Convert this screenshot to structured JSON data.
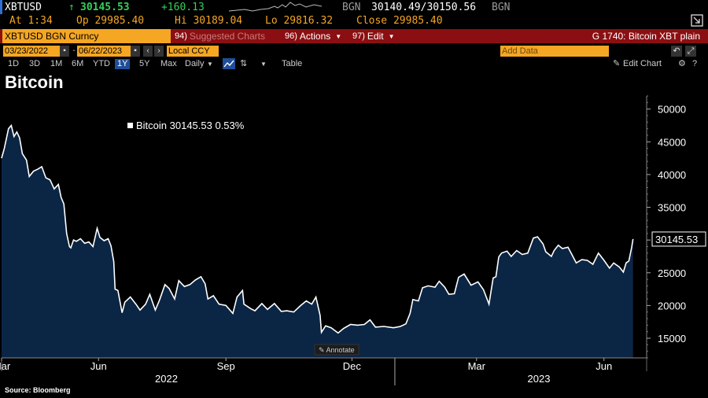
{
  "ticker": {
    "symbol": "XBTUSD",
    "price": "30145.53",
    "change": "+160.13",
    "source_label": "BGN",
    "bid_ask": "30140.49/30150.56",
    "source_label2": "BGN",
    "up_arrow": "↑"
  },
  "quote": {
    "at": "At 1:34",
    "open": "Op 29985.40",
    "high": "Hi 30189.04",
    "low": "Lo 29816.32",
    "close": "Close 29985.40"
  },
  "cmdbar": {
    "security": "XBTUSD BGN Curncy",
    "suggested_num": "94)",
    "suggested": "Suggested Charts",
    "actions_num": "96)",
    "actions": "Actions",
    "edit_num": "97)",
    "edit": "Edit",
    "right_title": "G 1740: Bitcoin XBT plain"
  },
  "dates": {
    "start": "03/23/2022",
    "end": "06/22/2023",
    "currency": "Local CCY",
    "add_data_placeholder": "Add Data",
    "edit_chart": "Edit Chart"
  },
  "ranges": [
    "1D",
    "3D",
    "1M",
    "6M",
    "YTD",
    "1Y",
    "5Y",
    "Max"
  ],
  "selected_range": "1Y",
  "period": "Daily",
  "table_label": "Table",
  "title": "Bitcoin",
  "source": "Source:  Bloomberg",
  "annotate": "Annotate",
  "colors": {
    "accent": "#f5a623",
    "cmdbar": "#8b0f12",
    "fill": "#0b2545",
    "line": "#ffffff",
    "up": "#34d058"
  },
  "chart_data": {
    "type": "area",
    "series_name": "Bitcoin",
    "legend_label": "Bitcoin 30145.53  0.53%",
    "last_value_label": "30145.53",
    "ylim": [
      12000,
      52000
    ],
    "yticks": [
      15000,
      20000,
      25000,
      30000,
      35000,
      40000,
      45000,
      50000
    ],
    "ytick_labels": [
      "15000",
      "20000",
      "25000",
      "30000",
      "35000",
      "40000",
      "45000",
      "50000"
    ],
    "xlim": [
      "2022-03-23",
      "2023-06-22"
    ],
    "x_month_labels": [
      {
        "label": "Mar",
        "date": "2022-03-23"
      },
      {
        "label": "Jun",
        "date": "2022-06-01"
      },
      {
        "label": "Sep",
        "date": "2022-09-01"
      },
      {
        "label": "Dec",
        "date": "2022-12-01"
      },
      {
        "label": "Mar",
        "date": "2023-03-01"
      },
      {
        "label": "Jun",
        "date": "2023-06-01"
      }
    ],
    "x_year_labels": [
      {
        "label": "2022",
        "date": "2022-07-20"
      },
      {
        "label": "2023",
        "date": "2023-04-15"
      }
    ],
    "x_year_divider": "2023-01-01",
    "points": [
      [
        "2022-03-23",
        42500
      ],
      [
        "2022-03-25",
        44000
      ],
      [
        "2022-03-28",
        47000
      ],
      [
        "2022-03-30",
        47500
      ],
      [
        "2022-04-01",
        45800
      ],
      [
        "2022-04-03",
        46500
      ],
      [
        "2022-04-05",
        45600
      ],
      [
        "2022-04-07",
        43200
      ],
      [
        "2022-04-10",
        42200
      ],
      [
        "2022-04-12",
        39700
      ],
      [
        "2022-04-15",
        40500
      ],
      [
        "2022-04-18",
        40800
      ],
      [
        "2022-04-21",
        41200
      ],
      [
        "2022-04-24",
        39500
      ],
      [
        "2022-04-27",
        39200
      ],
      [
        "2022-04-30",
        37800
      ],
      [
        "2022-05-03",
        38500
      ],
      [
        "2022-05-05",
        36500
      ],
      [
        "2022-05-07",
        35500
      ],
      [
        "2022-05-09",
        31000
      ],
      [
        "2022-05-11",
        29000
      ],
      [
        "2022-05-12",
        28800
      ],
      [
        "2022-05-14",
        30000
      ],
      [
        "2022-05-16",
        29800
      ],
      [
        "2022-05-19",
        30200
      ],
      [
        "2022-05-22",
        29500
      ],
      [
        "2022-05-25",
        29700
      ],
      [
        "2022-05-28",
        29000
      ],
      [
        "2022-05-31",
        31800
      ],
      [
        "2022-06-02",
        30400
      ],
      [
        "2022-06-05",
        29900
      ],
      [
        "2022-06-08",
        30200
      ],
      [
        "2022-06-10",
        29100
      ],
      [
        "2022-06-12",
        26700
      ],
      [
        "2022-06-13",
        22500
      ],
      [
        "2022-06-15",
        22300
      ],
      [
        "2022-06-18",
        18900
      ],
      [
        "2022-06-20",
        20500
      ],
      [
        "2022-06-24",
        21300
      ],
      [
        "2022-06-28",
        20200
      ],
      [
        "2022-07-01",
        19300
      ],
      [
        "2022-07-05",
        20200
      ],
      [
        "2022-07-08",
        21700
      ],
      [
        "2022-07-12",
        19300
      ],
      [
        "2022-07-15",
        20800
      ],
      [
        "2022-07-19",
        23200
      ],
      [
        "2022-07-22",
        22600
      ],
      [
        "2022-07-26",
        21000
      ],
      [
        "2022-07-29",
        23800
      ],
      [
        "2022-08-02",
        22900
      ],
      [
        "2022-08-06",
        23200
      ],
      [
        "2022-08-10",
        23900
      ],
      [
        "2022-08-14",
        24400
      ],
      [
        "2022-08-17",
        23300
      ],
      [
        "2022-08-19",
        21000
      ],
      [
        "2022-08-23",
        21500
      ],
      [
        "2022-08-27",
        20200
      ],
      [
        "2022-09-01",
        20000
      ],
      [
        "2022-09-06",
        18800
      ],
      [
        "2022-09-09",
        21300
      ],
      [
        "2022-09-13",
        22300
      ],
      [
        "2022-09-14",
        20200
      ],
      [
        "2022-09-19",
        19500
      ],
      [
        "2022-09-22",
        19200
      ],
      [
        "2022-09-27",
        20300
      ],
      [
        "2022-10-01",
        19400
      ],
      [
        "2022-10-06",
        20300
      ],
      [
        "2022-10-11",
        19100
      ],
      [
        "2022-10-15",
        19200
      ],
      [
        "2022-10-20",
        19000
      ],
      [
        "2022-10-25",
        20000
      ],
      [
        "2022-10-29",
        20700
      ],
      [
        "2022-11-02",
        20200
      ],
      [
        "2022-11-05",
        21300
      ],
      [
        "2022-11-08",
        18500
      ],
      [
        "2022-11-09",
        15900
      ],
      [
        "2022-11-12",
        16900
      ],
      [
        "2022-11-16",
        16600
      ],
      [
        "2022-11-21",
        15800
      ],
      [
        "2022-11-25",
        16500
      ],
      [
        "2022-11-30",
        17100
      ],
      [
        "2022-12-05",
        17000
      ],
      [
        "2022-12-10",
        17100
      ],
      [
        "2022-12-14",
        17800
      ],
      [
        "2022-12-18",
        16700
      ],
      [
        "2022-12-24",
        16800
      ],
      [
        "2022-12-31",
        16600
      ],
      [
        "2023-01-05",
        16800
      ],
      [
        "2023-01-09",
        17200
      ],
      [
        "2023-01-12",
        18800
      ],
      [
        "2023-01-14",
        20900
      ],
      [
        "2023-01-18",
        20700
      ],
      [
        "2023-01-21",
        22700
      ],
      [
        "2023-01-25",
        23000
      ],
      [
        "2023-01-30",
        22800
      ],
      [
        "2023-02-02",
        23700
      ],
      [
        "2023-02-06",
        22800
      ],
      [
        "2023-02-09",
        21700
      ],
      [
        "2023-02-13",
        21800
      ],
      [
        "2023-02-16",
        24300
      ],
      [
        "2023-02-20",
        24800
      ],
      [
        "2023-02-25",
        23100
      ],
      [
        "2023-03-02",
        23600
      ],
      [
        "2023-03-06",
        22400
      ],
      [
        "2023-03-10",
        20200
      ],
      [
        "2023-03-13",
        24200
      ],
      [
        "2023-03-15",
        24400
      ],
      [
        "2023-03-17",
        27400
      ],
      [
        "2023-03-19",
        28000
      ],
      [
        "2023-03-23",
        28300
      ],
      [
        "2023-03-26",
        27500
      ],
      [
        "2023-03-30",
        28400
      ],
      [
        "2023-04-03",
        27800
      ],
      [
        "2023-04-07",
        28000
      ],
      [
        "2023-04-11",
        30300
      ],
      [
        "2023-04-14",
        30500
      ],
      [
        "2023-04-18",
        29400
      ],
      [
        "2023-04-20",
        28200
      ],
      [
        "2023-04-24",
        27500
      ],
      [
        "2023-04-26",
        28400
      ],
      [
        "2023-04-29",
        29200
      ],
      [
        "2023-05-02",
        28700
      ],
      [
        "2023-05-06",
        28900
      ],
      [
        "2023-05-09",
        27700
      ],
      [
        "2023-05-12",
        26500
      ],
      [
        "2023-05-16",
        27000
      ],
      [
        "2023-05-20",
        26900
      ],
      [
        "2023-05-24",
        26300
      ],
      [
        "2023-05-28",
        28000
      ],
      [
        "2023-06-01",
        26900
      ],
      [
        "2023-06-05",
        25700
      ],
      [
        "2023-06-08",
        26500
      ],
      [
        "2023-06-12",
        25900
      ],
      [
        "2023-06-15",
        25100
      ],
      [
        "2023-06-17",
        26500
      ],
      [
        "2023-06-19",
        26800
      ],
      [
        "2023-06-21",
        28900
      ],
      [
        "2023-06-22",
        30145.53
      ]
    ]
  }
}
